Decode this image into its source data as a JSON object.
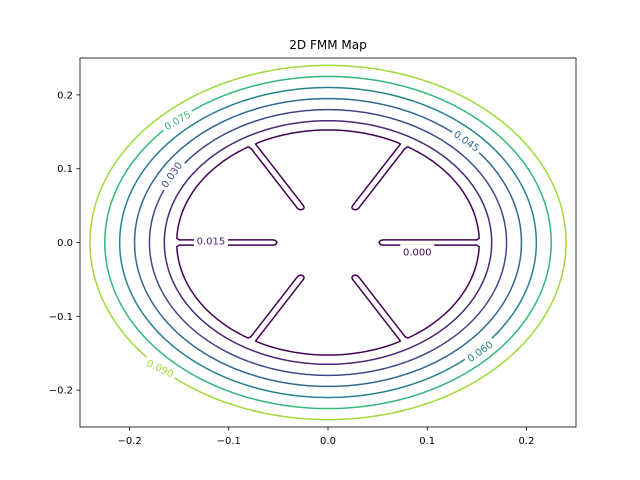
{
  "chart_data": {
    "type": "contour",
    "title": "2D FMM Map",
    "xlabel": "",
    "ylabel": "",
    "xlim": [
      -0.25,
      0.25
    ],
    "ylim": [
      -0.25,
      0.25
    ],
    "x_ticks": [
      -0.2,
      -0.1,
      0.0,
      0.1,
      0.2
    ],
    "y_ticks": [
      -0.2,
      -0.1,
      0.0,
      0.1,
      0.2
    ],
    "x_tick_labels": [
      "−0.2",
      "−0.1",
      "0.0",
      "0.1",
      "0.2"
    ],
    "y_tick_labels": [
      "−0.2",
      "−0.1",
      "0.0",
      "0.1",
      "0.2"
    ],
    "grid": false,
    "obstacle": {
      "outer_radius": 0.15,
      "spokes": 6,
      "spoke_angles_deg": [
        0,
        60,
        120,
        180,
        240,
        300
      ],
      "slot_inner_radius": 0.055,
      "description_values": "zero-level set"
    },
    "levels": [
      {
        "value": 0.0,
        "label": "0.000",
        "color": "#440154"
      },
      {
        "value": 0.015,
        "label": "0.015",
        "color": "#482878"
      },
      {
        "value": 0.03,
        "label": "0.030",
        "color": "#3e4989"
      },
      {
        "value": 0.045,
        "label": "0.045",
        "color": "#31688e"
      },
      {
        "value": 0.06,
        "label": "0.060",
        "color": "#26828e"
      },
      {
        "value": 0.075,
        "label": "0.075",
        "color": "#35b779"
      },
      {
        "value": 0.09,
        "label": "0.090",
        "color": "#9fda3a"
      }
    ],
    "level_labels": [
      {
        "text": "0.000",
        "x": 0.09,
        "y": -0.012,
        "rotation": 0,
        "color": "#440154"
      },
      {
        "text": "0.015",
        "x": -0.118,
        "y": 0.003,
        "rotation": 0,
        "color": "#482878"
      },
      {
        "text": "0.030",
        "x": -0.158,
        "y": 0.092,
        "rotation": -55,
        "color": "#3e4989"
      },
      {
        "text": "0.045",
        "x": 0.14,
        "y": 0.138,
        "rotation": 35,
        "color": "#31688e"
      },
      {
        "text": "0.060",
        "x": 0.153,
        "y": -0.147,
        "rotation": -35,
        "color": "#26828e"
      },
      {
        "text": "0.075",
        "x": -0.152,
        "y": 0.166,
        "rotation": -30,
        "color": "#35b779"
      },
      {
        "text": "0.090",
        "x": -0.169,
        "y": -0.17,
        "rotation": 25,
        "color": "#9fda3a"
      }
    ]
  }
}
